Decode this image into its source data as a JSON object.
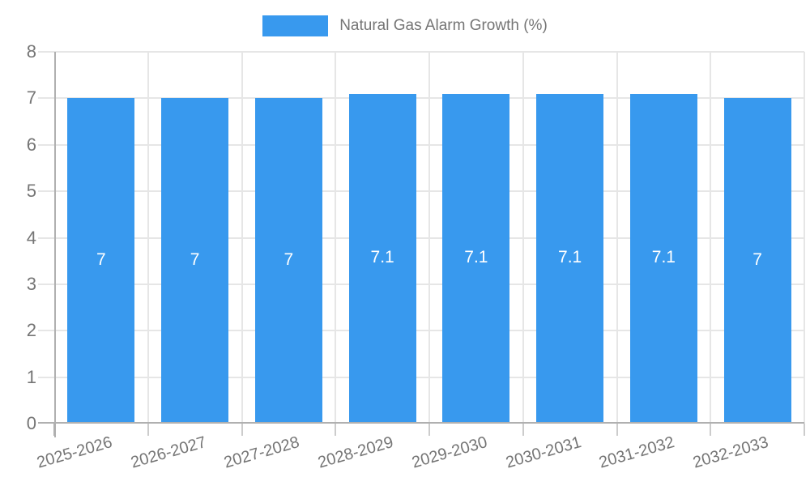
{
  "legend": {
    "label": "Natural Gas Alarm Growth (%)"
  },
  "chart_data": {
    "type": "bar",
    "title": "Natural Gas Alarm Growth (%)",
    "categories": [
      "2025-2026",
      "2026-2027",
      "2027-2028",
      "2028-2029",
      "2029-2030",
      "2030-2031",
      "2031-2032",
      "2032-2033"
    ],
    "values": [
      7,
      7,
      7,
      7.1,
      7.1,
      7.1,
      7.1,
      7
    ],
    "bar_labels": [
      "7",
      "7",
      "7",
      "7.1",
      "7.1",
      "7.1",
      "7.1",
      "7"
    ],
    "xlabel": "",
    "ylabel": "",
    "ylim": [
      0,
      8
    ],
    "yticks": [
      0,
      1,
      2,
      3,
      4,
      5,
      6,
      7,
      8
    ],
    "grid": true,
    "legend_position": "top-center",
    "colors": {
      "bar": "#3899ee",
      "axis_line": "#b0b0b0",
      "grid_line": "#e6e6e6",
      "tick_label": "#757575",
      "bar_value_label": "#ffffff"
    }
  }
}
